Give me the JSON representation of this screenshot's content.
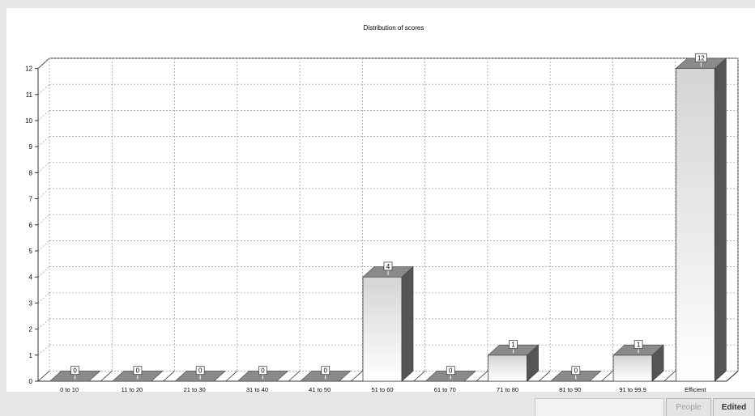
{
  "chart_data": {
    "type": "bar",
    "title": "Distribution of scores",
    "xlabel": "",
    "ylabel": "",
    "categories": [
      "0 to 10",
      "11 to 20",
      "21 to 30",
      "31 to 40",
      "41 to 50",
      "51 to 60",
      "61 to 70",
      "71 to 80",
      "81 to 90",
      "91 to 99.9",
      "Efficient"
    ],
    "values": [
      0,
      0,
      0,
      0,
      0,
      4,
      0,
      1,
      0,
      1,
      12
    ],
    "ylim": [
      0,
      12
    ],
    "yticks": [
      0,
      1,
      2,
      3,
      4,
      5,
      6,
      7,
      8,
      9,
      10,
      11,
      12
    ],
    "grid": true,
    "style": "3d",
    "data_labels": true
  },
  "colors": {
    "bar_front_top": "#d4d4d4",
    "bar_front_bottom": "#ffffff",
    "bar_side": "#555555",
    "bar_top": "#8a8a8a",
    "grid": "#999999",
    "axis": "#333333"
  },
  "footer": {
    "button_1": "People",
    "button_2": "Edited"
  }
}
